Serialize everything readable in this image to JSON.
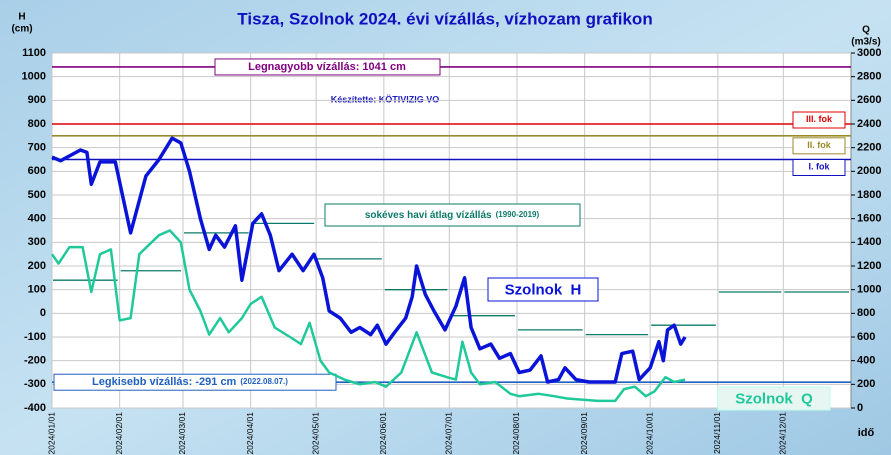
{
  "chart_data": {
    "type": "line",
    "title": "Tisza, Szolnok 2024. évi vízállás, vízhozam  grafikon",
    "y_axis_label": "H",
    "y_axis_unit": "(cm)",
    "y2_axis_label": "Q",
    "y2_axis_unit": "(m3/s)",
    "x_axis_label": "idő",
    "annotation": "Készítette: KÖTIVIZIG VO",
    "xlim": [
      "2024/01/01",
      "2024/12/31"
    ],
    "xticks": [
      "2024/01/01",
      "2024/02/01",
      "2024/03/01",
      "2024/04/01",
      "2024/05/01",
      "2024/06/01",
      "2024/07/01",
      "2024/08/01",
      "2024/09/01",
      "2024/10/01",
      "2024/11/01",
      "2024/12/01"
    ],
    "ylim": [
      -400,
      1100
    ],
    "yticks": [
      -400,
      -300,
      -200,
      -100,
      0,
      100,
      200,
      300,
      400,
      500,
      600,
      700,
      800,
      900,
      1000,
      1100
    ],
    "y2lim": [
      0,
      3000
    ],
    "y2ticks": [
      0,
      200,
      400,
      600,
      800,
      1000,
      1200,
      1400,
      1600,
      1800,
      2000,
      2200,
      2400,
      2600,
      2800,
      3000
    ],
    "grid": true,
    "series": [
      {
        "name": "Szolnok  H",
        "color": "#0a14d8",
        "axis": "y",
        "x": [
          "2024/01/01",
          "2024/01/05",
          "2024/01/14",
          "2024/01/17",
          "2024/01/19",
          "2024/01/23",
          "2024/01/30",
          "2024/02/06",
          "2024/02/13",
          "2024/02/19",
          "2024/02/25",
          "2024/02/29",
          "2024/03/04",
          "2024/03/09",
          "2024/03/13",
          "2024/03/16",
          "2024/03/20",
          "2024/03/25",
          "2024/03/28",
          "2024/04/02",
          "2024/04/06",
          "2024/04/10",
          "2024/04/14",
          "2024/04/20",
          "2024/04/25",
          "2024/04/30",
          "2024/05/04",
          "2024/05/07",
          "2024/05/12",
          "2024/05/17",
          "2024/05/21",
          "2024/05/26",
          "2024/05/29",
          "2024/06/02",
          "2024/06/06",
          "2024/06/11",
          "2024/06/14",
          "2024/06/16",
          "2024/06/20",
          "2024/06/24",
          "2024/06/29",
          "2024/07/04",
          "2024/07/08",
          "2024/07/11",
          "2024/07/15",
          "2024/07/20",
          "2024/07/24",
          "2024/07/29",
          "2024/08/02",
          "2024/08/07",
          "2024/08/12",
          "2024/08/15",
          "2024/08/20",
          "2024/08/23",
          "2024/08/28",
          "2024/09/03",
          "2024/09/15",
          "2024/09/18",
          "2024/09/23",
          "2024/09/26",
          "2024/10/01",
          "2024/10/05",
          "2024/10/07",
          "2024/10/09",
          "2024/10/12",
          "2024/10/15",
          "2024/10/17"
        ],
        "values": [
          660,
          645,
          690,
          680,
          545,
          640,
          640,
          340,
          580,
          650,
          740,
          720,
          600,
          400,
          270,
          330,
          280,
          370,
          140,
          380,
          420,
          330,
          180,
          250,
          180,
          250,
          150,
          10,
          -20,
          -80,
          -60,
          -90,
          -50,
          -130,
          -80,
          -20,
          70,
          200,
          80,
          10,
          -70,
          30,
          150,
          -60,
          -150,
          -130,
          -190,
          -170,
          -250,
          -240,
          -180,
          -290,
          -280,
          -230,
          -280,
          -290,
          -290,
          -170,
          -160,
          -280,
          -230,
          -120,
          -200,
          -70,
          -50,
          -130,
          -100
        ]
      },
      {
        "name": "Szolnok  Q",
        "color": "#1fc99a",
        "axis": "y2",
        "x": [
          "2024/01/01",
          "2024/01/04",
          "2024/01/09",
          "2024/01/15",
          "2024/01/19",
          "2024/01/23",
          "2024/01/28",
          "2024/02/01",
          "2024/02/06",
          "2024/02/10",
          "2024/02/19",
          "2024/02/24",
          "2024/02/29",
          "2024/03/04",
          "2024/03/09",
          "2024/03/13",
          "2024/03/18",
          "2024/03/22",
          "2024/03/28",
          "2024/04/01",
          "2024/04/06",
          "2024/04/12",
          "2024/04/19",
          "2024/04/24",
          "2024/04/28",
          "2024/05/03",
          "2024/05/07",
          "2024/05/14",
          "2024/05/21",
          "2024/05/28",
          "2024/06/02",
          "2024/06/09",
          "2024/06/16",
          "2024/06/23",
          "2024/06/30",
          "2024/07/04",
          "2024/07/07",
          "2024/07/11",
          "2024/07/15",
          "2024/07/22",
          "2024/07/29",
          "2024/08/02",
          "2024/08/11",
          "2024/08/18",
          "2024/08/24",
          "2024/09/07",
          "2024/09/15",
          "2024/09/19",
          "2024/09/24",
          "2024/09/29",
          "2024/10/03",
          "2024/10/08",
          "2024/10/12",
          "2024/10/17"
        ],
        "values": [
          1300,
          1220,
          1360,
          1360,
          980,
          1300,
          1340,
          740,
          760,
          1300,
          1460,
          1500,
          1400,
          1000,
          820,
          620,
          760,
          640,
          760,
          880,
          940,
          680,
          600,
          540,
          720,
          400,
          300,
          240,
          200,
          220,
          180,
          300,
          640,
          300,
          260,
          240,
          560,
          300,
          200,
          220,
          120,
          100,
          120,
          100,
          80,
          60,
          60,
          160,
          180,
          100,
          140,
          260,
          220,
          240
        ]
      }
    ],
    "monthly_average": {
      "label": "sokéves havi átlag vízállás",
      "period": "(1990-2019)",
      "color": "#0b7a6a",
      "x": [
        "2024/01/01",
        "2024/02/01",
        "2024/03/01",
        "2024/04/01",
        "2024/05/01",
        "2024/06/01",
        "2024/07/01",
        "2024/08/01",
        "2024/09/01",
        "2024/10/01",
        "2024/11/01",
        "2024/12/01"
      ],
      "values": [
        140,
        180,
        340,
        380,
        230,
        100,
        -10,
        -70,
        -90,
        -50,
        90,
        90
      ]
    },
    "reference_lines": [
      {
        "label": "Legnagyobb vízállás: 1041 cm",
        "value": 1041,
        "color": "#800080"
      },
      {
        "label": "III. fok",
        "value": 800,
        "color": "#e00000"
      },
      {
        "label": "II. fok",
        "value": 750,
        "color": "#9a8a2a"
      },
      {
        "label": "I. fok",
        "value": 650,
        "color": "#1010c0"
      },
      {
        "label": "Legkisebb vízállás: -291 cm",
        "note": "(2022.08.07.)",
        "value": -291,
        "color": "#2060c0"
      }
    ]
  }
}
